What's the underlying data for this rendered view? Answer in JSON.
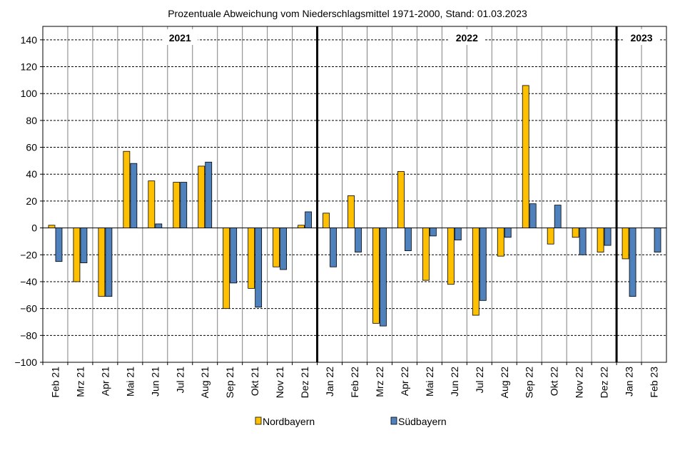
{
  "chart_data": {
    "type": "bar",
    "title": "Prozentuale  Abweichung vom Niederschlagsmittel 1971-2000,  Stand:  01.03.2023",
    "xlabel": "",
    "ylabel": "",
    "ylim": [
      -100,
      150
    ],
    "yticks": [
      "-100",
      "-80",
      "-60",
      "-40",
      "-20",
      "0",
      "20",
      "40",
      "60",
      "80",
      "100",
      "120",
      "140"
    ],
    "grid": true,
    "legend_position": "bottom",
    "categories": [
      "Feb 21",
      "Mrz 21",
      "Apr 21",
      "Mai 21",
      "Jun 21",
      "Jul 21",
      "Aug 21",
      "Sep 21",
      "Okt 21",
      "Nov 21",
      "Dez 21",
      "Jan 22",
      "Feb 22",
      "Mrz 22",
      "Apr 22",
      "Mai 22",
      "Jun 22",
      "Jul 22",
      "Aug 22",
      "Sep 22",
      "Okt 22",
      "Nov 22",
      "Dez 22",
      "Jan 23",
      "Feb 23"
    ],
    "series": [
      {
        "name": "Nordbayern",
        "color": "#FFC000",
        "values": [
          2,
          -40,
          -51,
          57,
          35,
          34,
          46,
          -60,
          -45,
          -29,
          2,
          11,
          24,
          -71,
          42,
          -39,
          -42,
          -65,
          -21,
          106,
          -12,
          -7,
          -18,
          -23,
          0
        ]
      },
      {
        "name": "Südbayern",
        "color": "#4F81BD",
        "values": [
          -25,
          -26,
          -51,
          48,
          3,
          34,
          49,
          -41,
          -59,
          -31,
          12,
          -29,
          -18,
          -73,
          -17,
          -6,
          -9,
          -54,
          -7,
          18,
          17,
          -20,
          -13,
          -51,
          -18
        ]
      }
    ],
    "year_labels": [
      {
        "label": "2021",
        "start_index": 0,
        "end_index": 10
      },
      {
        "label": "2022",
        "start_index": 11,
        "end_index": 22
      },
      {
        "label": "2023",
        "start_index": 23,
        "end_index": 24
      }
    ]
  }
}
